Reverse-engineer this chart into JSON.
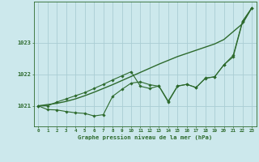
{
  "title": "Graphe pression niveau de la mer (hPa)",
  "bg_color": "#cce8ec",
  "grid_color": "#aacdd4",
  "line_color": "#2d6a2d",
  "x_ticks": [
    0,
    1,
    2,
    3,
    4,
    5,
    6,
    7,
    8,
    9,
    10,
    11,
    12,
    13,
    14,
    15,
    16,
    17,
    18,
    19,
    20,
    21,
    22,
    23
  ],
  "y_ticks": [
    1021,
    1022,
    1023
  ],
  "ylim": [
    1020.35,
    1024.3
  ],
  "xlim": [
    -0.5,
    23.5
  ],
  "smooth_line": [
    1021.0,
    1021.04,
    1021.08,
    1021.14,
    1021.22,
    1021.32,
    1021.43,
    1021.55,
    1021.67,
    1021.8,
    1021.93,
    1022.06,
    1022.19,
    1022.32,
    1022.44,
    1022.56,
    1022.66,
    1022.76,
    1022.86,
    1022.96,
    1023.1,
    1023.35,
    1023.6,
    1024.1
  ],
  "line2": [
    1021.0,
    1020.88,
    1020.87,
    1020.82,
    1020.78,
    1020.76,
    1020.68,
    1020.72,
    1021.3,
    1021.52,
    1021.72,
    1021.76,
    1021.67,
    1021.62,
    1021.12,
    1021.62,
    1021.68,
    1021.58,
    1021.88,
    1021.92,
    1022.3,
    1022.55,
    1023.65,
    1024.1
  ],
  "line3": [
    1021.0,
    1021.0,
    1021.12,
    1021.22,
    1021.32,
    1021.42,
    1021.55,
    1021.68,
    1021.82,
    1021.95,
    1022.08,
    1021.62,
    1021.55,
    1021.63,
    1021.15,
    1021.63,
    1021.68,
    1021.58,
    1021.87,
    1021.92,
    1022.3,
    1022.6,
    1023.68,
    1024.1
  ]
}
